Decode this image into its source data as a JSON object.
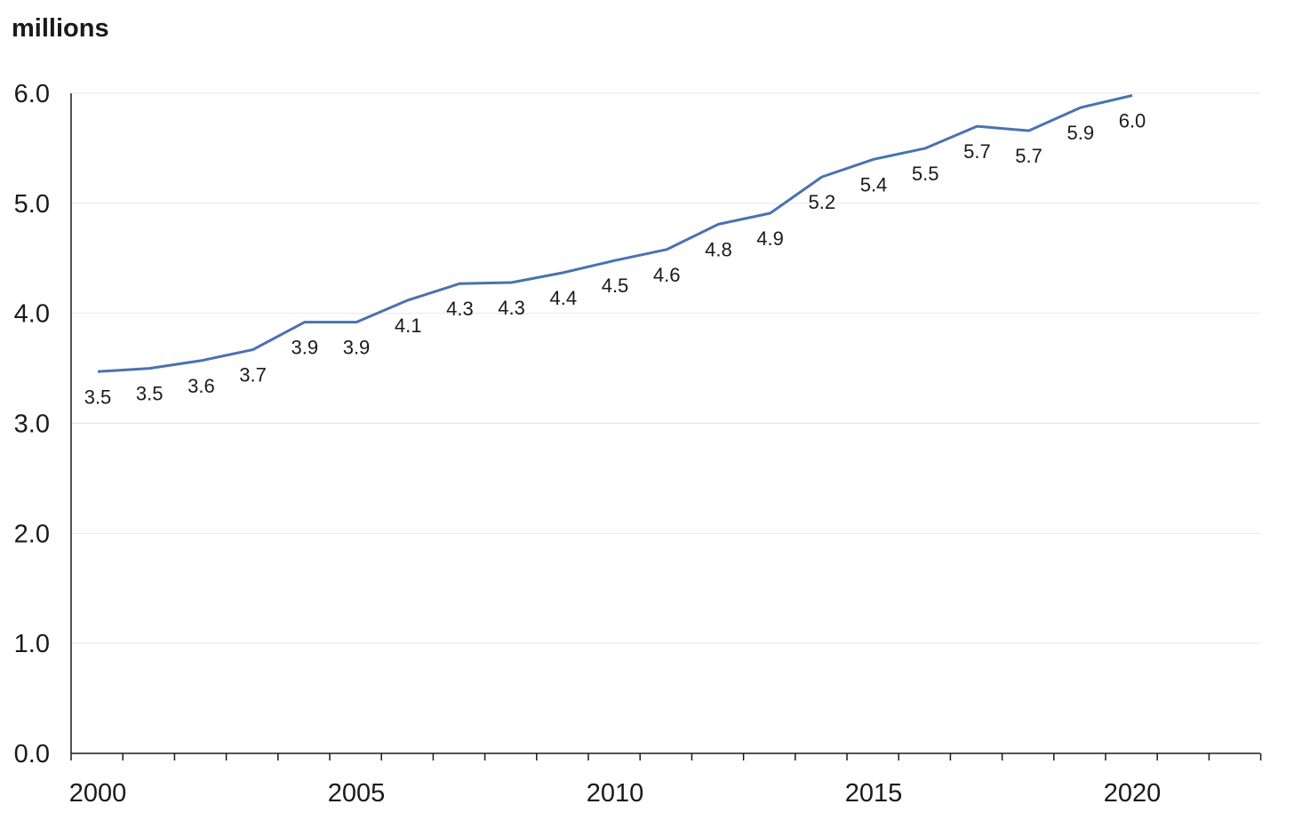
{
  "chart_data": {
    "type": "line",
    "ylabel": "millions",
    "ylim": [
      0,
      6
    ],
    "yticks": [
      "0.0",
      "1.0",
      "2.0",
      "3.0",
      "4.0",
      "5.0",
      "6.0"
    ],
    "xlim": [
      2000,
      2023
    ],
    "xticks": [
      "2000",
      "2005",
      "2010",
      "2015",
      "2020"
    ],
    "grid": "horizontal",
    "line_color": "#4a72b0",
    "series": [
      {
        "x": [
          2000,
          2001,
          2002,
          2003,
          2004,
          2005,
          2006,
          2007,
          2008,
          2009,
          2010,
          2011,
          2012,
          2013,
          2014,
          2015,
          2016,
          2017,
          2018,
          2019,
          2020
        ],
        "values": [
          3.47,
          3.5,
          3.57,
          3.67,
          3.92,
          3.92,
          4.12,
          4.27,
          4.28,
          4.37,
          4.48,
          4.58,
          4.81,
          4.91,
          5.24,
          5.4,
          5.5,
          5.7,
          5.66,
          5.87,
          5.98
        ],
        "labels": [
          "3.5",
          "3.5",
          "3.6",
          "3.7",
          "3.9",
          "3.9",
          "4.1",
          "4.3",
          "4.3",
          "4.4",
          "4.5",
          "4.6",
          "4.8",
          "4.9",
          "5.2",
          "5.4",
          "5.5",
          "5.7",
          "5.7",
          "5.9",
          "6.0"
        ]
      }
    ]
  }
}
